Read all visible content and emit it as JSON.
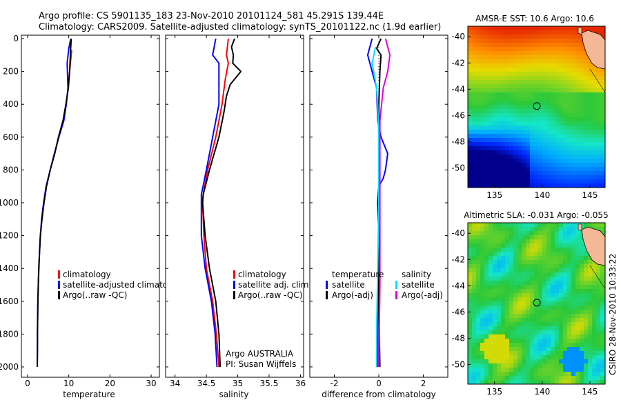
{
  "header": {
    "line1": "Argo profile: CS 5901135_183 23-Nov-2010 20101124_581 45.291S 139.44E",
    "line2": "Climatology: CARS2009. Satellite-adjusted climatology: synTS_20101122.nc (1.9d earlier)"
  },
  "colors": {
    "climatology": "#ff0000",
    "satellite": "#0000ff",
    "argo": "#000000",
    "satellite_salinity": "#00e0ff",
    "argo_salinity": "#e000e0"
  },
  "depth_ticks": [
    "0",
    "200",
    "400",
    "600",
    "800",
    "1000",
    "1200",
    "1400",
    "1600",
    "1800",
    "2000"
  ],
  "chart_data": [
    {
      "type": "line",
      "id": "temperature",
      "xlabel": "temperature",
      "xlim": [
        -1.5,
        32
      ],
      "ylim": [
        0,
        2070
      ],
      "xticks": [
        "0",
        "10",
        "20",
        "30"
      ],
      "legend": [
        "climatology",
        "satellite-adjusted climatology",
        "Argo(..raw -QC)"
      ],
      "series": [
        {
          "name": "climatology",
          "color": "#ff0000",
          "points": [
            [
              10.7,
              70
            ],
            [
              10.6,
              100
            ],
            [
              10.4,
              150
            ],
            [
              10.2,
              200
            ],
            [
              10.0,
              250
            ],
            [
              9.8,
              300
            ]
          ]
        },
        {
          "name": "satellite-adjusted climatology",
          "color": "#0000ff",
          "points": [
            [
              10.5,
              0
            ],
            [
              10.0,
              60
            ],
            [
              9.6,
              150
            ],
            [
              9.8,
              300
            ],
            [
              9.4,
              400
            ],
            [
              8.8,
              500
            ],
            [
              7.6,
              600
            ],
            [
              6.5,
              700
            ],
            [
              5.5,
              800
            ],
            [
              4.5,
              900
            ],
            [
              3.9,
              1000
            ],
            [
              3.4,
              1100
            ],
            [
              3.1,
              1200
            ],
            [
              2.9,
              1300
            ],
            [
              2.75,
              1400
            ],
            [
              2.6,
              1500
            ],
            [
              2.5,
              1600
            ],
            [
              2.45,
              1700
            ],
            [
              2.4,
              1800
            ],
            [
              2.38,
              1900
            ],
            [
              2.35,
              2000
            ]
          ]
        },
        {
          "name": "Argo(..raw -QC)",
          "color": "#000000",
          "points": [
            [
              10.6,
              0
            ],
            [
              10.5,
              50
            ],
            [
              10.4,
              100
            ],
            [
              10.2,
              200
            ],
            [
              9.9,
              300
            ],
            [
              9.3,
              400
            ],
            [
              8.6,
              500
            ],
            [
              7.5,
              600
            ],
            [
              6.6,
              700
            ],
            [
              5.5,
              800
            ],
            [
              4.6,
              900
            ],
            [
              4.0,
              1000
            ],
            [
              3.5,
              1100
            ],
            [
              3.1,
              1200
            ],
            [
              2.9,
              1300
            ],
            [
              2.7,
              1400
            ],
            [
              2.6,
              1500
            ],
            [
              2.5,
              1600
            ],
            [
              2.45,
              1700
            ],
            [
              2.4,
              1800
            ],
            [
              2.4,
              1900
            ],
            [
              2.35,
              2000
            ]
          ]
        }
      ]
    },
    {
      "type": "line",
      "id": "salinity",
      "xlabel": "salinity",
      "xlim": [
        33.85,
        36.05
      ],
      "ylim": [
        0,
        2070
      ],
      "xticks": [
        "34",
        "34.5",
        "35",
        "35.5",
        "36"
      ],
      "legend": [
        "climatology",
        "satellite adj. clim.",
        "Argo(..raw -QC)"
      ],
      "footnote": [
        "Argo AUSTRALIA",
        "PI: Susan Wijffels"
      ],
      "series": [
        {
          "name": "climatology",
          "color": "#ff0000",
          "points": [
            [
              34.85,
              0
            ],
            [
              34.82,
              100
            ],
            [
              34.85,
              150
            ],
            [
              34.8,
              250
            ],
            [
              34.75,
              400
            ],
            [
              34.65,
              600
            ],
            [
              34.52,
              800
            ],
            [
              34.45,
              950
            ],
            [
              34.44,
              1000
            ],
            [
              34.46,
              1200
            ],
            [
              34.5,
              1400
            ],
            [
              34.6,
              1600
            ],
            [
              34.66,
              1800
            ],
            [
              34.7,
              2000
            ]
          ]
        },
        {
          "name": "satellite adj. clim.",
          "color": "#0000ff",
          "points": [
            [
              34.65,
              0
            ],
            [
              34.6,
              100
            ],
            [
              34.7,
              150
            ],
            [
              34.7,
              300
            ],
            [
              34.7,
              400
            ],
            [
              34.6,
              600
            ],
            [
              34.5,
              800
            ],
            [
              34.42,
              950
            ],
            [
              34.42,
              1000
            ],
            [
              34.42,
              1200
            ],
            [
              34.48,
              1400
            ],
            [
              34.58,
              1600
            ],
            [
              34.64,
              1800
            ],
            [
              34.67,
              2000
            ]
          ]
        },
        {
          "name": "Argo(..raw -QC)",
          "color": "#000000",
          "points": [
            [
              34.95,
              0
            ],
            [
              34.9,
              50
            ],
            [
              34.93,
              100
            ],
            [
              34.92,
              150
            ],
            [
              35.05,
              200
            ],
            [
              34.88,
              280
            ],
            [
              34.82,
              350
            ],
            [
              34.78,
              450
            ],
            [
              34.7,
              600
            ],
            [
              34.55,
              800
            ],
            [
              34.45,
              950
            ],
            [
              34.44,
              1000
            ],
            [
              34.48,
              1200
            ],
            [
              34.55,
              1400
            ],
            [
              34.65,
              1600
            ],
            [
              34.7,
              1800
            ],
            [
              34.72,
              2000
            ]
          ]
        }
      ]
    },
    {
      "type": "line",
      "id": "difference",
      "xlabel": "difference from climatology",
      "xlim": [
        -3.1,
        3.1
      ],
      "ylim": [
        0,
        2070
      ],
      "xticks": [
        "-2",
        "0",
        "2"
      ],
      "legend_left_title": "temperature",
      "legend_left": [
        "satellite",
        "Argo(-adj)"
      ],
      "legend_right_title": "salinity",
      "legend_right": [
        "satellite",
        "Argo(-adj)"
      ],
      "series": [
        {
          "name": "temperature satellite",
          "color": "#0000ff",
          "points": [
            [
              -0.3,
              0
            ],
            [
              -0.5,
              100
            ],
            [
              -0.3,
              200
            ],
            [
              -0.1,
              300
            ],
            [
              -0.05,
              500
            ],
            [
              0.1,
              600
            ],
            [
              0.4,
              700
            ],
            [
              0.3,
              800
            ],
            [
              0.2,
              850
            ],
            [
              0.0,
              900
            ],
            [
              0.0,
              1200
            ],
            [
              -0.05,
              1600
            ],
            [
              -0.05,
              2000
            ]
          ]
        },
        {
          "name": "temperature Argo(-adj)",
          "color": "#000000",
          "points": [
            [
              0.1,
              0
            ],
            [
              -0.1,
              60
            ],
            [
              0.1,
              100
            ],
            [
              0.05,
              200
            ],
            [
              0.0,
              400
            ],
            [
              0.0,
              900
            ],
            [
              -0.05,
              1000
            ],
            [
              0.0,
              1200
            ],
            [
              0.0,
              1600
            ],
            [
              0.05,
              2000
            ]
          ]
        },
        {
          "name": "salinity satellite",
          "color": "#00e0ff",
          "points": [
            [
              -0.15,
              50
            ],
            [
              -0.3,
              150
            ],
            [
              -0.1,
              300
            ],
            [
              -0.05,
              400
            ],
            [
              0.0,
              600
            ],
            [
              0.0,
              1000
            ],
            [
              -0.05,
              1400
            ],
            [
              -0.1,
              1800
            ],
            [
              -0.1,
              2000
            ]
          ]
        },
        {
          "name": "salinity Argo(-adj)",
          "color": "#e000e0",
          "points": [
            [
              0.3,
              0
            ],
            [
              0.5,
              100
            ],
            [
              0.4,
              200
            ],
            [
              0.2,
              300
            ],
            [
              0.05,
              500
            ],
            [
              0.05,
              1000
            ],
            [
              0.05,
              1500
            ],
            [
              0.0,
              2000
            ]
          ]
        }
      ]
    },
    {
      "type": "heatmap",
      "id": "sst_map",
      "title": "AMSR-E SST: 10.6  Argo: 10.6",
      "xticks": [
        "135",
        "140",
        "145"
      ],
      "yticks": [
        "-40",
        "-42",
        "-44",
        "-46",
        "-48",
        "-50"
      ],
      "xlim": [
        132.2,
        146.6
      ],
      "ylim": [
        -51.5,
        -39.2
      ],
      "argo_position": [
        139.44,
        -45.29
      ]
    },
    {
      "type": "heatmap",
      "id": "sla_map",
      "title": "Altimetric SLA: -0.031  Argo: -0.055",
      "xticks": [
        "135",
        "140",
        "145"
      ],
      "yticks": [
        "-40",
        "-42",
        "-44",
        "-46",
        "-48",
        "-50"
      ],
      "xlim": [
        132.2,
        146.6
      ],
      "ylim": [
        -51.5,
        -39.2
      ],
      "argo_position": [
        139.44,
        -45.29
      ]
    }
  ],
  "credit": "CSIRO 28-Nov-2010 10:33:22"
}
